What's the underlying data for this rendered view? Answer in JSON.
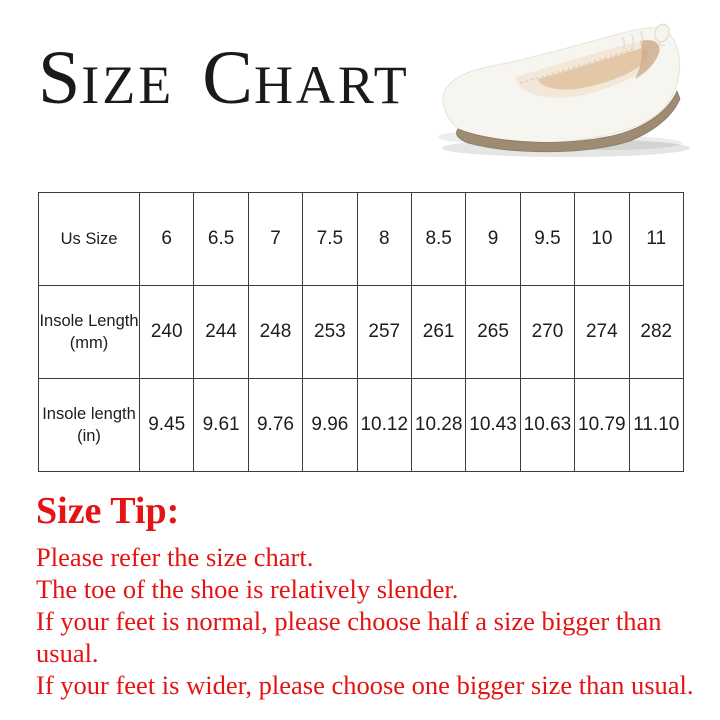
{
  "title": {
    "text": "Size Chart",
    "word1_initial": "S",
    "word1_rest": "IZE",
    "word2_initial": "C",
    "word2_rest": "HART"
  },
  "hero_image": {
    "icon": "ballet-flat-shoe",
    "description": "white ballet flat shoe with elastic scrunch heel"
  },
  "size_table": {
    "rows": [
      {
        "label": "Us Size",
        "values": [
          "6",
          "6.5",
          "7",
          "7.5",
          "8",
          "8.5",
          "9",
          "9.5",
          "10",
          "11"
        ]
      },
      {
        "label": "Insole Length\n(mm)",
        "values": [
          "240",
          "244",
          "248",
          "253",
          "257",
          "261",
          "265",
          "270",
          "274",
          "282"
        ]
      },
      {
        "label": "Insole length\n(in)",
        "values": [
          "9.45",
          "9.61",
          "9.76",
          "9.96",
          "10.12",
          "10.28",
          "10.43",
          "10.63",
          "10.79",
          "11.10"
        ]
      }
    ]
  },
  "size_tip": {
    "heading": "Size Tip:",
    "lines": [
      "Please refer the size chart.",
      "The toe of the shoe is relatively slender.",
      "If your feet is normal, please choose half a size bigger than usual.",
      "If your feet is wider, please choose one bigger size than usual."
    ]
  },
  "colors": {
    "tip_red": "#e41414",
    "table_border": "#3c3c3c",
    "table_text": "#1d1d1d",
    "title_text": "#1a1a1a",
    "shoe_upper": "#f7f5f0",
    "shoe_insole": "#f2e7d8",
    "shoe_footbed": "#e2c3a2",
    "shoe_sole": "#9d8b72"
  }
}
